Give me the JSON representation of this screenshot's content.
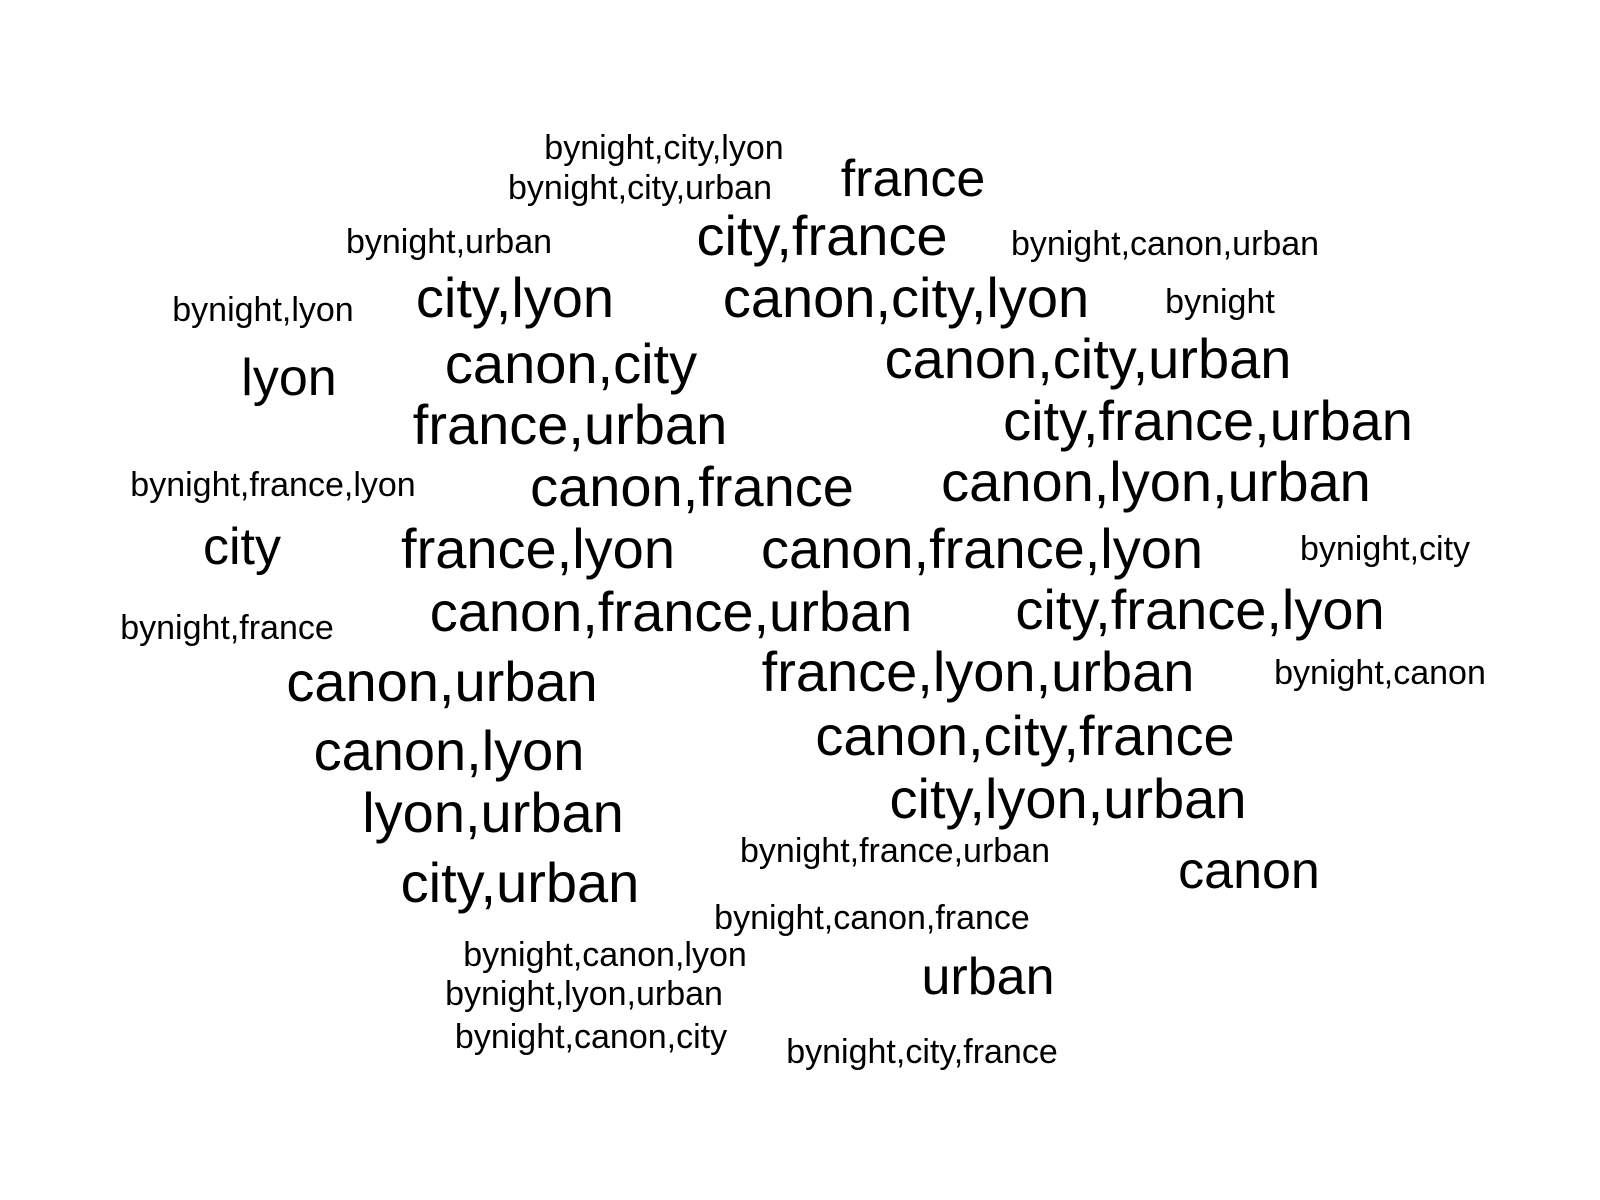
{
  "chart_data": {
    "type": "wordcloud",
    "words": [
      {
        "text": "bynight,city,lyon",
        "weight": 1
      },
      {
        "text": "france",
        "weight": 2
      },
      {
        "text": "bynight,city,urban",
        "weight": 1
      },
      {
        "text": "city,france",
        "weight": 3
      },
      {
        "text": "bynight,urban",
        "weight": 1
      },
      {
        "text": "bynight,canon,urban",
        "weight": 1
      },
      {
        "text": "bynight,lyon",
        "weight": 1
      },
      {
        "text": "city,lyon",
        "weight": 3
      },
      {
        "text": "canon,city,lyon",
        "weight": 3
      },
      {
        "text": "bynight",
        "weight": 1
      },
      {
        "text": "lyon",
        "weight": 2
      },
      {
        "text": "canon,city",
        "weight": 3
      },
      {
        "text": "canon,city,urban",
        "weight": 3
      },
      {
        "text": "france,urban",
        "weight": 3
      },
      {
        "text": "city,france,urban",
        "weight": 3
      },
      {
        "text": "bynight,france,lyon",
        "weight": 1
      },
      {
        "text": "canon,france",
        "weight": 3
      },
      {
        "text": "canon,lyon,urban",
        "weight": 3
      },
      {
        "text": "city",
        "weight": 2
      },
      {
        "text": "france,lyon",
        "weight": 3
      },
      {
        "text": "canon,france,lyon",
        "weight": 3
      },
      {
        "text": "bynight,city",
        "weight": 1
      },
      {
        "text": "canon,france,urban",
        "weight": 3
      },
      {
        "text": "city,france,lyon",
        "weight": 3
      },
      {
        "text": "bynight,france",
        "weight": 1
      },
      {
        "text": "canon,urban",
        "weight": 3
      },
      {
        "text": "france,lyon,urban",
        "weight": 3
      },
      {
        "text": "bynight,canon",
        "weight": 1
      },
      {
        "text": "canon,lyon",
        "weight": 3
      },
      {
        "text": "canon,city,france",
        "weight": 3
      },
      {
        "text": "lyon,urban",
        "weight": 3
      },
      {
        "text": "city,lyon,urban",
        "weight": 3
      },
      {
        "text": "bynight,france,urban",
        "weight": 1
      },
      {
        "text": "canon",
        "weight": 2
      },
      {
        "text": "city,urban",
        "weight": 3
      },
      {
        "text": "bynight,canon,france",
        "weight": 1
      },
      {
        "text": "bynight,canon,lyon",
        "weight": 1
      },
      {
        "text": "urban",
        "weight": 2
      },
      {
        "text": "bynight,lyon,urban",
        "weight": 1
      },
      {
        "text": "bynight,canon,city",
        "weight": 1
      },
      {
        "text": "bynight,city,france",
        "weight": 1
      }
    ]
  }
}
